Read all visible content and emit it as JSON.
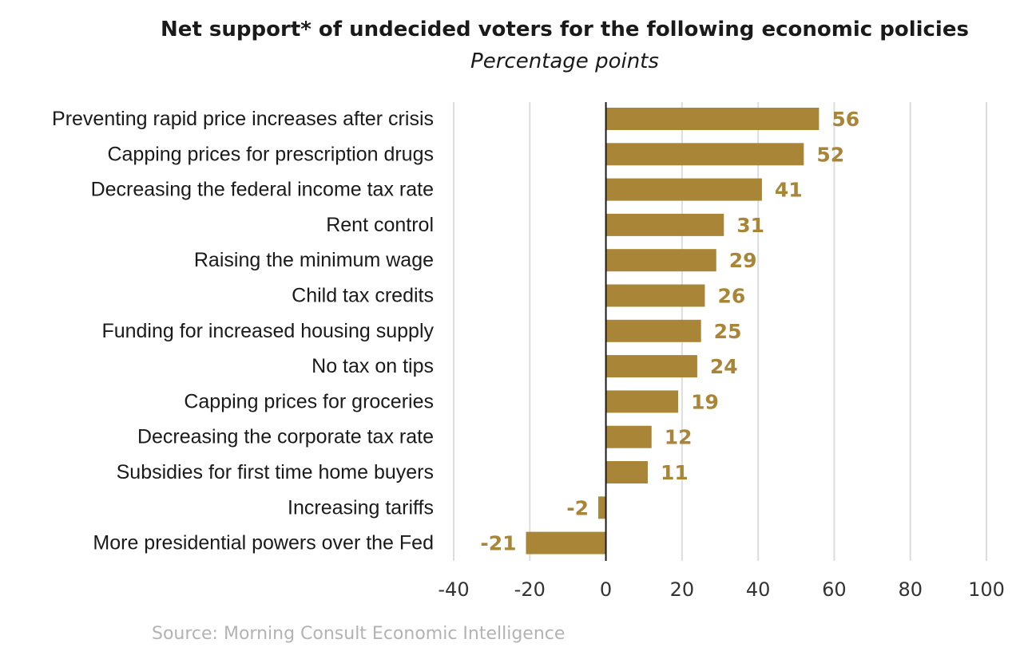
{
  "chart_data": {
    "type": "bar",
    "orientation": "horizontal",
    "title": "Net support* of undecided voters for the following economic policies",
    "subtitle": "Percentage points",
    "categories": [
      "Preventing rapid price increases after crisis",
      "Capping prices for prescription drugs",
      "Decreasing the federal income tax rate",
      "Rent control",
      "Raising the minimum wage",
      "Child tax credits",
      "Funding for increased housing supply",
      "No tax on tips",
      "Capping prices for groceries",
      "Decreasing the corporate tax rate",
      "Subsidies for first time home buyers",
      "Increasing tariffs",
      "More presidential powers over the Fed"
    ],
    "values": [
      56,
      52,
      41,
      31,
      29,
      26,
      25,
      24,
      19,
      12,
      11,
      -2,
      -21
    ],
    "value_labels": [
      "56",
      "52",
      "41",
      "31",
      "29",
      "26",
      "25",
      "24",
      "19",
      "12",
      "11",
      "-2",
      "-21"
    ],
    "xlim": [
      -40,
      100
    ],
    "xticks": [
      -40,
      -20,
      0,
      20,
      40,
      60,
      80,
      100
    ],
    "xtick_labels": [
      "-40",
      "-20",
      "0",
      "20",
      "40",
      "60",
      "80",
      "100"
    ],
    "grid": true,
    "bar_color": "#a88537",
    "label_color": "#a88537",
    "source": "Source: Morning Consult Economic Intelligence"
  }
}
